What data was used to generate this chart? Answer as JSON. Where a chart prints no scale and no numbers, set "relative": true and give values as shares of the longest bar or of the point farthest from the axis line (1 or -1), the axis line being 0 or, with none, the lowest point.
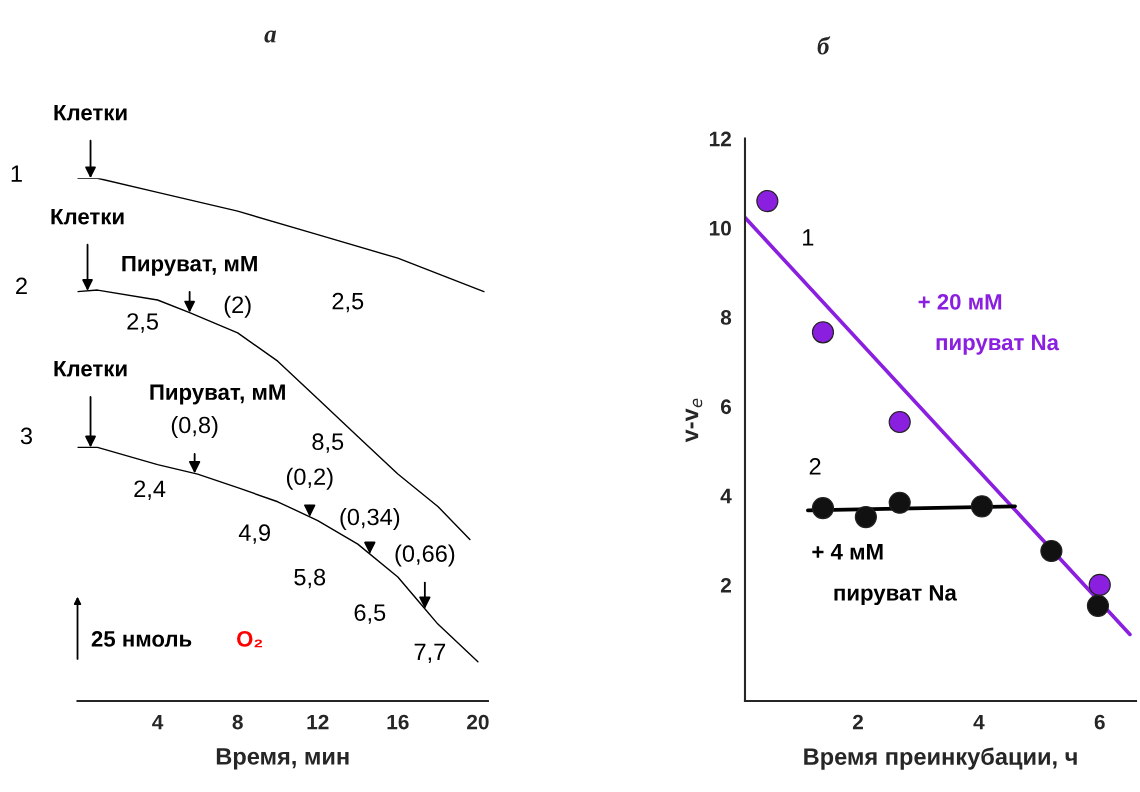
{
  "chart_data": [
    {
      "type": "line",
      "title": "а",
      "xlabel": "Время, мин",
      "relative": true,
      "xlim": [
        0,
        20.5
      ],
      "xticks": [
        4,
        8,
        12,
        16,
        20
      ],
      "tick_labels": "x",
      "legend": false,
      "grid": false,
      "series": [
        {
          "color": "#000000",
          "x": [
            0,
            1,
            4,
            8,
            12,
            16,
            20.3
          ],
          "values": [
            1.0,
            1.0,
            0.973,
            0.937,
            0.892,
            0.847,
            0.783
          ]
        },
        {
          "color": "#000000",
          "x": [
            0,
            1,
            4,
            5.6,
            8,
            10,
            12,
            14,
            16,
            18,
            19.6
          ],
          "values": [
            0.783,
            0.786,
            0.767,
            0.743,
            0.704,
            0.65,
            0.578,
            0.506,
            0.434,
            0.372,
            0.309
          ]
        },
        {
          "color": "#000000",
          "x": [
            0,
            1,
            4,
            6,
            8,
            10,
            12,
            14,
            16,
            17.2,
            18,
            20
          ],
          "values": [
            0.485,
            0.485,
            0.452,
            0.434,
            0.408,
            0.381,
            0.345,
            0.3,
            0.237,
            0.183,
            0.147,
            0.075
          ]
        }
      ],
      "annotations": [
        "Клетки",
        "1",
        "Клетки",
        "2",
        "Пируват, мМ",
        "(2)",
        "2,5",
        "2,5",
        "Клетки",
        "3",
        "Пируват, мМ",
        "(0,8)",
        "2,4",
        "8,5",
        "(0,2)",
        "4,9",
        "(0,34)",
        "5,8",
        "(0,66)",
        "6,5",
        "7,7",
        "25 нмоль",
        "O₂"
      ]
    },
    {
      "type": "scatter",
      "title": "б",
      "xlabel": "Время преинкубации, ч",
      "ylabel": "v-v$_{e}$",
      "xlim": [
        0.13,
        6.6
      ],
      "ylim": [
        -0.6,
        12
      ],
      "xticks": [
        2,
        4,
        6
      ],
      "yticks": [
        2,
        4,
        6,
        8,
        10,
        12
      ],
      "legend": false,
      "grid": false,
      "series": [
        {
          "color": "#8b1fe0",
          "x": [
            0.5,
            1.42,
            2.69,
            6.0
          ],
          "values": [
            10.6,
            7.66,
            5.65,
            2.0
          ]
        },
        {
          "color": "#111111",
          "x": [
            1.42,
            2.13,
            2.69,
            4.05,
            5.2,
            5.97
          ],
          "values": [
            3.72,
            3.52,
            3.84,
            3.76,
            2.76,
            1.53
          ]
        },
        {
          "type": "line",
          "color": "#8b1fe0",
          "x": [
            0.13,
            6.5
          ],
          "values": [
            10.23,
            0.89
          ]
        },
        {
          "type": "line",
          "color": "#000000",
          "x": [
            1.17,
            4.6
          ],
          "values": [
            3.67,
            3.76
          ]
        }
      ],
      "annotations": [
        "1",
        "2",
        "+ 20 мМ",
        "пируват Na",
        "+ 4 мМ",
        "пируват Na"
      ]
    }
  ]
}
